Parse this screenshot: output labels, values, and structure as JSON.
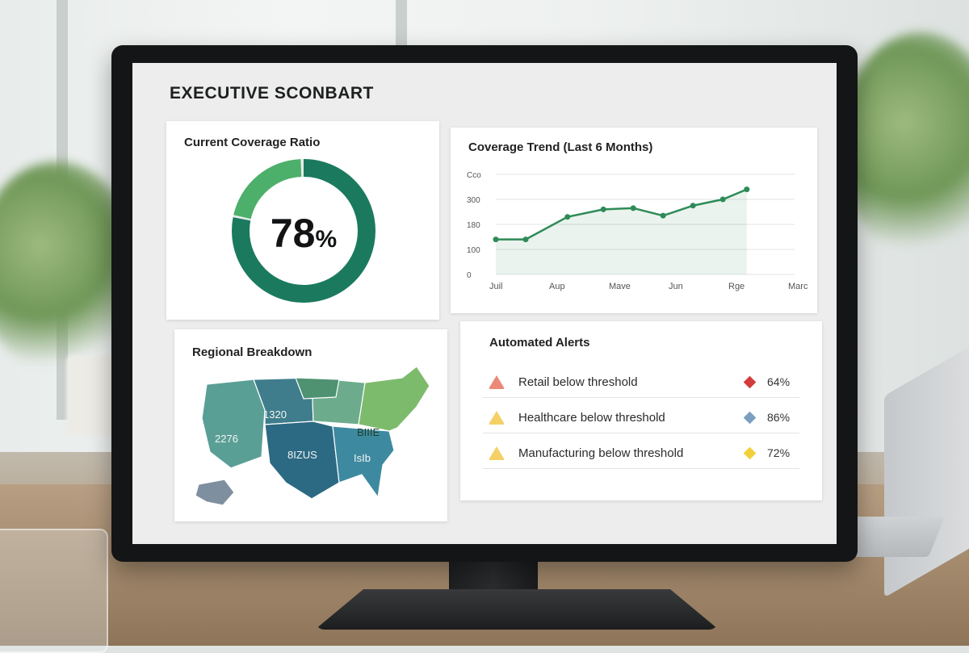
{
  "dashboard": {
    "title": "EXECUTIVE SCONBART"
  },
  "coverage": {
    "title": "Current Coverage Ratio",
    "value": "78",
    "unit": "%",
    "fraction": 0.78,
    "colors": {
      "primary": "#1b7a5e",
      "secondary": "#4caf6a"
    }
  },
  "trend": {
    "title": "Coverage Trend (Last 6 Months)",
    "y_ticks": [
      "Cco",
      "300",
      "180",
      "100",
      "0"
    ],
    "x_ticks": [
      "Juil",
      "Aup",
      "Mave",
      "Jun",
      "Rge",
      "Marc"
    ],
    "line_color": "#2e8b57"
  },
  "chart_data": {
    "type": "line",
    "title": "Coverage Trend (Last 6 Months)",
    "categories": [
      "Juil",
      "Aup",
      "Mave",
      "Jun",
      "Rge",
      "Marc"
    ],
    "ylim": [
      0,
      400
    ],
    "grid": true,
    "series": [
      {
        "values": [
          {
            "x": 0.0,
            "y": 140
          },
          {
            "x": 0.5,
            "y": 140
          },
          {
            "x": 1.2,
            "y": 230
          },
          {
            "x": 1.8,
            "y": 260
          },
          {
            "x": 2.3,
            "y": 265
          },
          {
            "x": 2.8,
            "y": 235
          },
          {
            "x": 3.3,
            "y": 275
          },
          {
            "x": 3.8,
            "y": 300
          },
          {
            "x": 4.2,
            "y": 340
          }
        ]
      }
    ]
  },
  "regional": {
    "title": "Regional Breakdown",
    "labels": [
      "1320",
      "2276",
      "8IZUS",
      "BIIIE",
      "IsIb"
    ]
  },
  "alerts": {
    "title": "Automated Alerts",
    "items": [
      {
        "label": "Retail below threshold",
        "value": "64%",
        "icon": "alert-triangle-icon",
        "icon_color": "#e8735f",
        "marker_color": "#d43b3b"
      },
      {
        "label": "Healthcare below threshold",
        "value": "86%",
        "icon": "alert-triangle-icon",
        "icon_color": "#f2c84b",
        "marker_color": "#7a9fc0"
      },
      {
        "label": "Manufacturing below threshold",
        "value": "72%",
        "icon": "alert-triangle-icon",
        "icon_color": "#f2c84b",
        "marker_color": "#f2d03b"
      }
    ]
  }
}
